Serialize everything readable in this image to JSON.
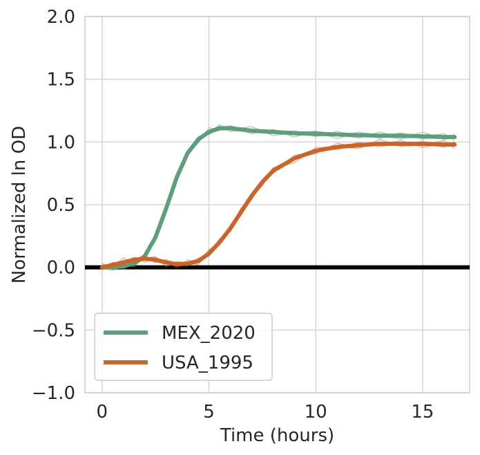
{
  "chart_data": {
    "type": "line",
    "title": "",
    "xlabel": "Time (hours)",
    "ylabel": "Normalized ln OD",
    "xlim": [
      -0.8,
      17.2
    ],
    "ylim": [
      -1.0,
      2.0
    ],
    "x_ticks": [
      0,
      5,
      10,
      15
    ],
    "y_ticks": [
      -1.0,
      -0.5,
      0.0,
      0.5,
      1.0,
      1.5,
      2.0
    ],
    "x_tick_labels": [
      "0",
      "5",
      "10",
      "15"
    ],
    "y_tick_labels": [
      "−1.0",
      "−0.5",
      "0.0",
      "0.5",
      "1.0",
      "1.5",
      "2.0"
    ],
    "grid": true,
    "legend_position": "lower-left",
    "reference_line": {
      "y": 0.0,
      "color": "#000000"
    },
    "series": [
      {
        "name": "MEX_2020",
        "color": "#5f9e7c",
        "x": [
          0,
          0.5,
          1,
          1.5,
          2,
          2.5,
          3,
          3.5,
          4,
          4.5,
          5,
          5.5,
          6,
          7,
          8,
          9,
          10,
          11,
          12,
          13,
          14,
          15,
          16,
          16.5
        ],
        "values": [
          0.0,
          0.0,
          0.01,
          0.03,
          0.09,
          0.24,
          0.47,
          0.72,
          0.91,
          1.02,
          1.08,
          1.11,
          1.11,
          1.09,
          1.08,
          1.07,
          1.065,
          1.06,
          1.055,
          1.05,
          1.05,
          1.045,
          1.04,
          1.04
        ]
      },
      {
        "name": "USA_1995",
        "color": "#c8652c",
        "x": [
          0,
          0.5,
          1,
          1.5,
          2,
          2.5,
          3,
          3.5,
          4,
          4.5,
          5,
          5.5,
          6,
          6.5,
          7,
          7.5,
          8,
          9,
          10,
          11,
          12,
          13,
          14,
          15,
          16,
          16.5
        ],
        "values": [
          0.0,
          0.02,
          0.04,
          0.06,
          0.07,
          0.06,
          0.04,
          0.025,
          0.03,
          0.05,
          0.11,
          0.2,
          0.31,
          0.44,
          0.57,
          0.68,
          0.77,
          0.87,
          0.93,
          0.96,
          0.975,
          0.985,
          0.985,
          0.985,
          0.98,
          0.98
        ]
      }
    ]
  }
}
